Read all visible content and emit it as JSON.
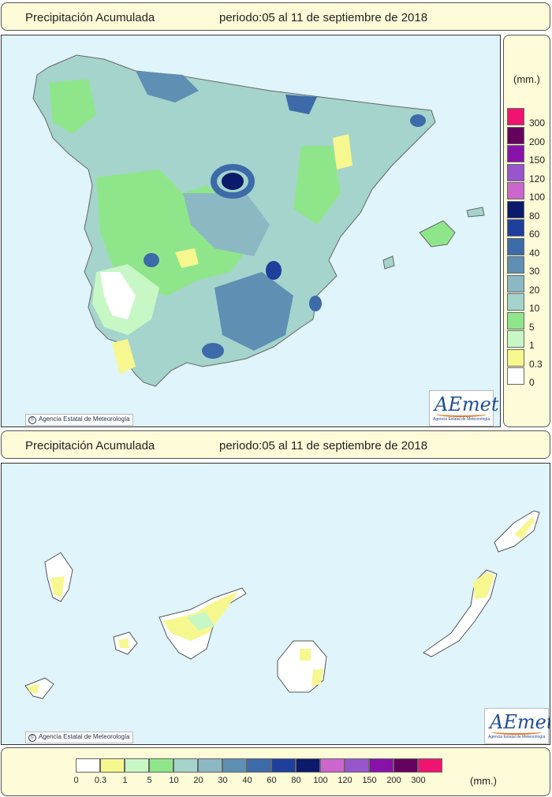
{
  "header_top": {
    "title": "Precipitación Acumulada",
    "period": "periodo:05 al 11 de septiembre de 2018"
  },
  "header_canarias": {
    "title": "Precipitación Acumulada",
    "period": "periodo:05 al 11 de septiembre de 2018"
  },
  "credit_text": "Agencia Estatal de Meteorología",
  "logo": {
    "name": "AEmet",
    "subtitle": "Agencia Estatal de Meteorología"
  },
  "units": "(mm.)",
  "legend_classes": [
    {
      "value": "0",
      "color": "#ffffff"
    },
    {
      "value": "0.3",
      "color": "#f7f78f"
    },
    {
      "value": "1",
      "color": "#c8f7c6"
    },
    {
      "value": "5",
      "color": "#8fe68a"
    },
    {
      "value": "10",
      "color": "#a4d4cc"
    },
    {
      "value": "20",
      "color": "#8cb8c4"
    },
    {
      "value": "30",
      "color": "#5f8fb3"
    },
    {
      "value": "40",
      "color": "#3d6aa8"
    },
    {
      "value": "60",
      "color": "#1f3f9c"
    },
    {
      "value": "80",
      "color": "#0c1a6b"
    },
    {
      "value": "100",
      "color": "#cc66cc"
    },
    {
      "value": "120",
      "color": "#9955cc"
    },
    {
      "value": "150",
      "color": "#8811aa"
    },
    {
      "value": "200",
      "color": "#66005f"
    },
    {
      "value": "300",
      "color": "#f01470"
    }
  ],
  "colors": {
    "sea": "#dff4fb",
    "panel": "#fdfbd8"
  }
}
